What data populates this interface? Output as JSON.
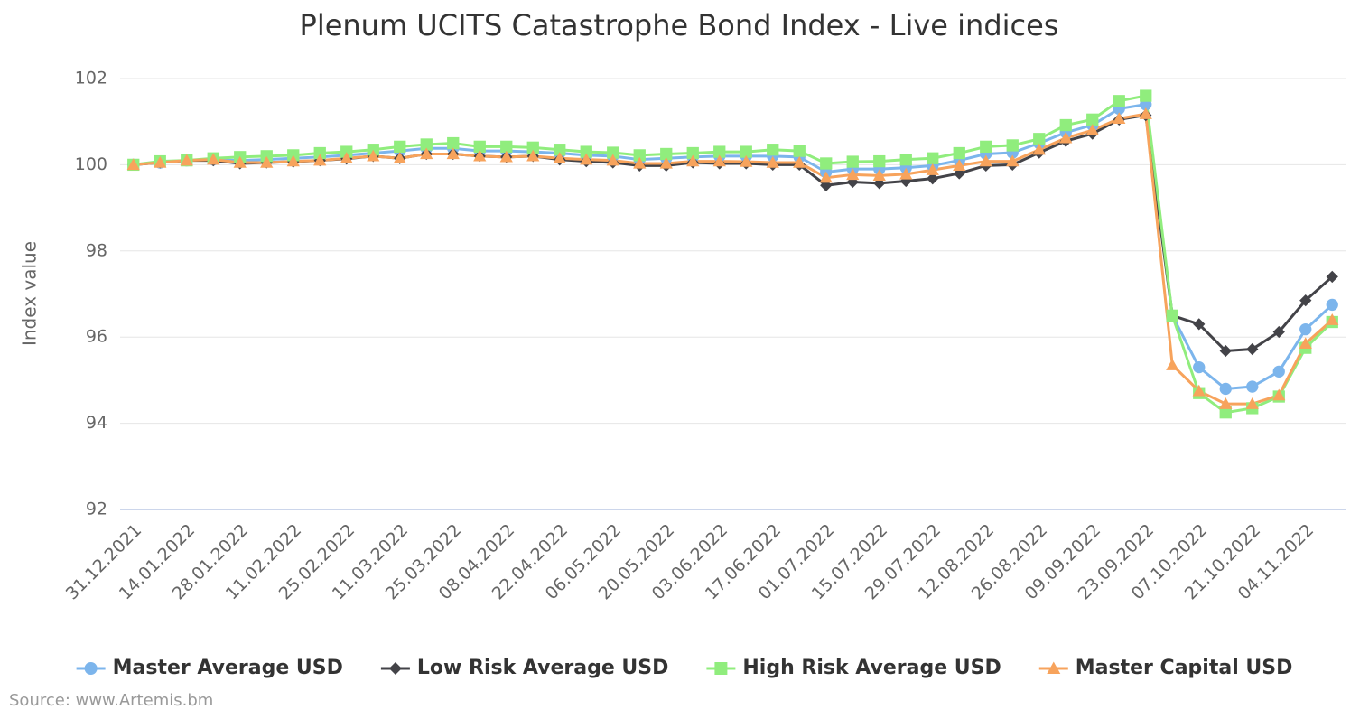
{
  "chart_data": {
    "type": "line",
    "title": "Plenum UCITS Catastrophe Bond Index - Live indices",
    "y_label": "Index value",
    "source": "Source: www.Artemis.bm",
    "categories": [
      "31.12.2021",
      null,
      "14.01.2022",
      null,
      "28.01.2022",
      null,
      "11.02.2022",
      null,
      "25.02.2022",
      null,
      "11.03.2022",
      null,
      "25.03.2022",
      null,
      "08.04.2022",
      null,
      "22.04.2022",
      null,
      "06.05.2022",
      null,
      "20.05.2022",
      null,
      "03.06.2022",
      null,
      "17.06.2022",
      null,
      "01.07.2022",
      null,
      "15.07.2022",
      null,
      "29.07.2022",
      null,
      "12.08.2022",
      null,
      "26.08.2022",
      null,
      "09.09.2022",
      null,
      "23.09.2022",
      null,
      "07.10.2022",
      null,
      "21.10.2022",
      null,
      "04.11.2022",
      null
    ],
    "ylim": [
      92,
      102
    ],
    "yticks": [
      92,
      94,
      96,
      98,
      100,
      102
    ],
    "grid": true,
    "series": [
      {
        "name": "Master Average USD",
        "color": "#7cb5ec",
        "marker": "circle",
        "values": [
          100.0,
          100.05,
          100.1,
          100.12,
          100.1,
          100.12,
          100.15,
          100.18,
          100.22,
          100.27,
          100.32,
          100.38,
          100.38,
          100.32,
          100.32,
          100.3,
          100.27,
          100.22,
          100.2,
          100.12,
          100.15,
          100.18,
          100.2,
          100.2,
          100.2,
          100.18,
          99.83,
          99.9,
          99.9,
          99.93,
          99.98,
          100.1,
          100.25,
          100.28,
          100.5,
          100.75,
          100.92,
          101.3,
          101.4,
          96.5,
          95.3,
          94.8,
          94.85,
          95.2,
          96.18,
          96.75
        ]
      },
      {
        "name": "Low Risk Average USD",
        "color": "#434348",
        "marker": "diamond",
        "values": [
          100.0,
          100.05,
          100.1,
          100.1,
          100.03,
          100.05,
          100.07,
          100.1,
          100.14,
          100.2,
          100.15,
          100.25,
          100.25,
          100.2,
          100.18,
          100.2,
          100.12,
          100.08,
          100.05,
          99.98,
          99.98,
          100.05,
          100.03,
          100.03,
          100.0,
          100.0,
          99.52,
          99.6,
          99.57,
          99.62,
          99.68,
          99.8,
          99.98,
          100.0,
          100.28,
          100.55,
          100.72,
          101.05,
          101.15,
          96.5,
          96.3,
          95.68,
          95.72,
          96.12,
          96.85,
          97.4
        ]
      },
      {
        "name": "High Risk Average USD",
        "color": "#90ed7d",
        "marker": "square",
        "values": [
          100.0,
          100.08,
          100.1,
          100.15,
          100.18,
          100.2,
          100.22,
          100.27,
          100.3,
          100.35,
          100.42,
          100.47,
          100.5,
          100.42,
          100.42,
          100.4,
          100.35,
          100.3,
          100.28,
          100.22,
          100.25,
          100.27,
          100.3,
          100.3,
          100.35,
          100.32,
          100.03,
          100.07,
          100.08,
          100.12,
          100.15,
          100.27,
          100.42,
          100.45,
          100.6,
          100.92,
          101.05,
          101.48,
          101.6,
          96.5,
          94.7,
          94.25,
          94.35,
          94.62,
          95.75,
          96.35
        ]
      },
      {
        "name": "Master Capital USD",
        "color": "#f7a35c",
        "marker": "triangle",
        "values": [
          100.0,
          100.05,
          100.1,
          100.12,
          100.05,
          100.05,
          100.08,
          100.1,
          100.15,
          100.2,
          100.15,
          100.25,
          100.25,
          100.2,
          100.18,
          100.2,
          100.15,
          100.12,
          100.1,
          100.03,
          100.03,
          100.08,
          100.08,
          100.07,
          100.05,
          100.05,
          99.7,
          99.77,
          99.75,
          99.78,
          99.88,
          99.98,
          100.08,
          100.08,
          100.35,
          100.62,
          100.8,
          101.07,
          101.18,
          95.35,
          94.75,
          94.45,
          94.45,
          94.65,
          95.85,
          96.4
        ]
      }
    ]
  }
}
